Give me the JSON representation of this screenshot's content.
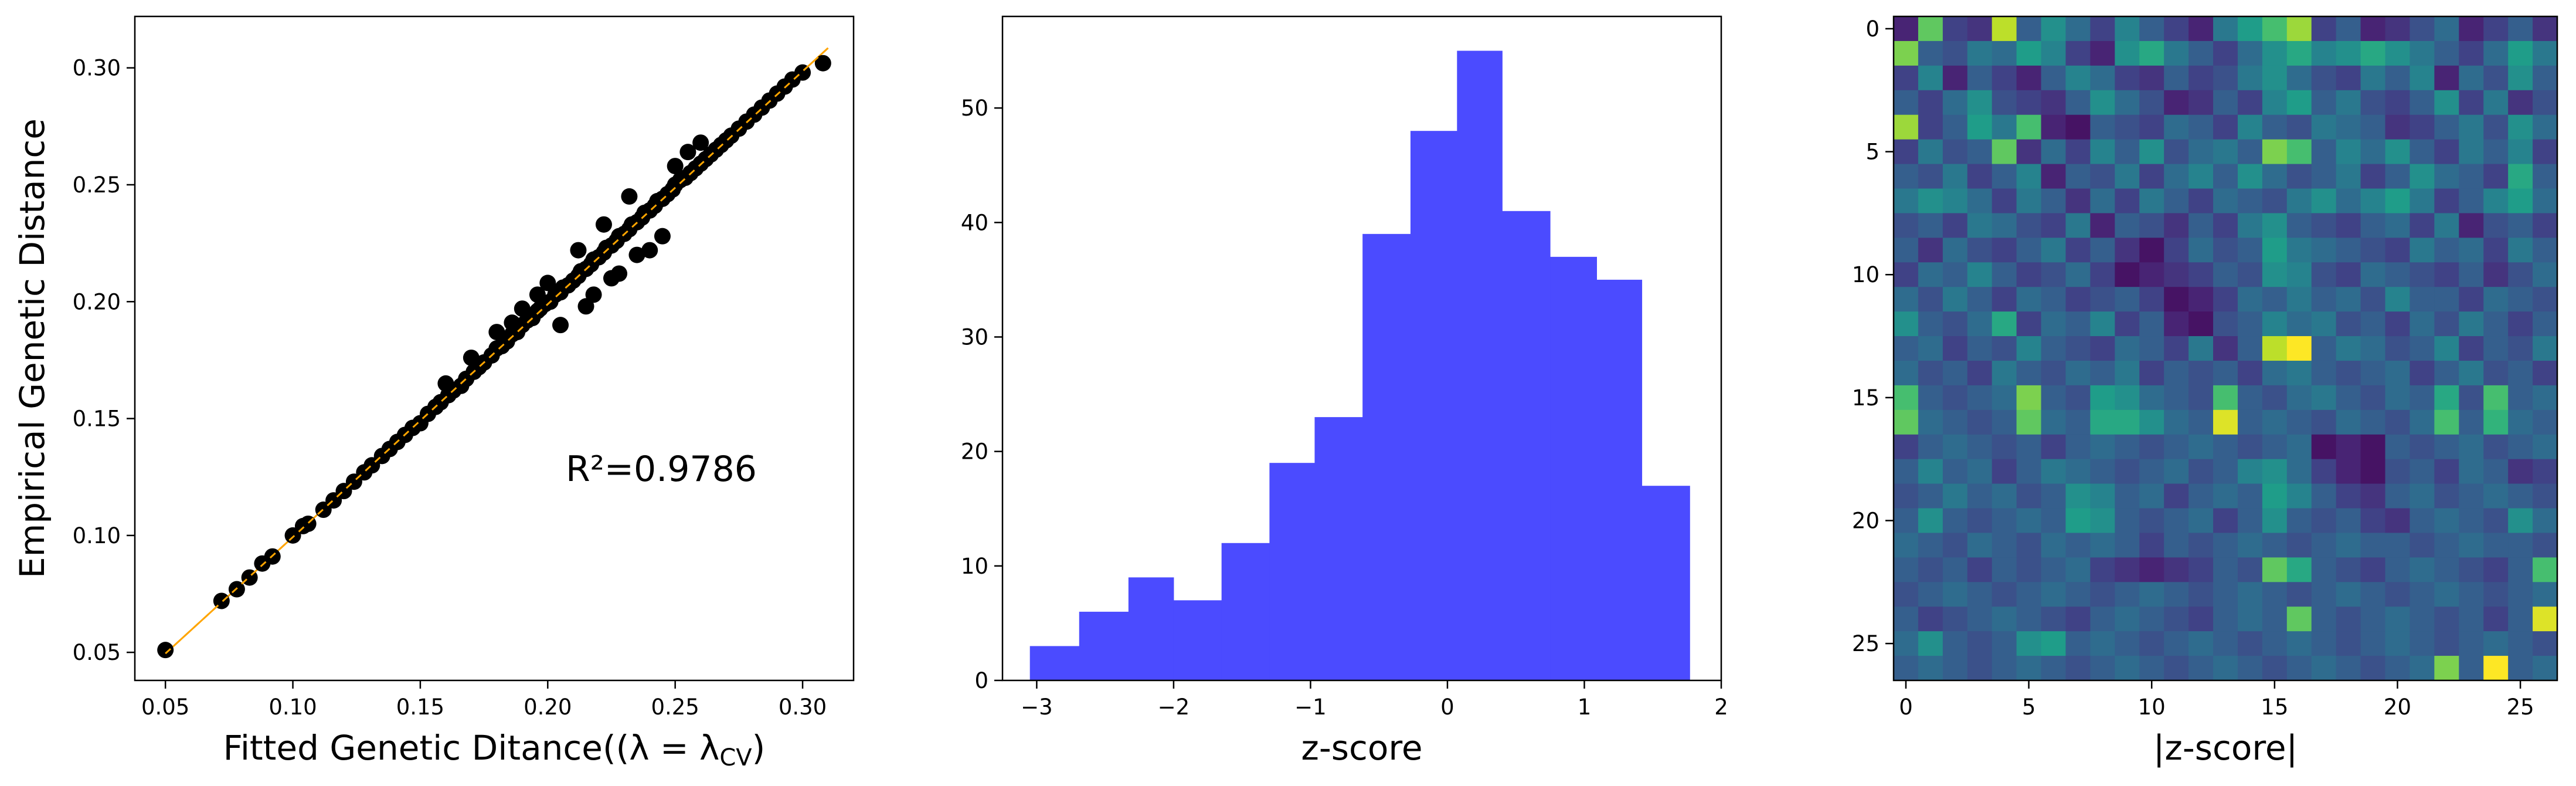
{
  "charts": [
    {
      "type": "scatter",
      "xlabel": "Fitted Genetic Ditance",
      "xlabel_math": "((λ = λ",
      "xlabel_sub": "CV",
      "xlabel_close": ")",
      "ylabel": "Empirical Genetic Distance",
      "annotation": "R²=0.9786",
      "xlim": [
        0.038,
        0.32
      ],
      "ylim": [
        0.038,
        0.322
      ],
      "xticks": [
        0.05,
        0.1,
        0.15,
        0.2,
        0.25,
        0.3
      ],
      "xtick_labels": [
        "0.05",
        "0.10",
        "0.15",
        "0.20",
        "0.25",
        "0.30"
      ],
      "yticks": [
        0.05,
        0.1,
        0.15,
        0.2,
        0.25,
        0.3
      ],
      "ytick_labels": [
        "0.05",
        "0.10",
        "0.15",
        "0.20",
        "0.25",
        "0.30"
      ],
      "marker_color": "#000000",
      "fit_line_color": "#ffa500",
      "fit_line": {
        "x": [
          0.05,
          0.31
        ],
        "y": [
          0.0495,
          0.3085
        ]
      },
      "x": [
        0.05,
        0.072,
        0.078,
        0.083,
        0.088,
        0.092,
        0.1,
        0.104,
        0.106,
        0.112,
        0.116,
        0.12,
        0.124,
        0.128,
        0.131,
        0.135,
        0.138,
        0.141,
        0.144,
        0.147,
        0.15,
        0.153,
        0.156,
        0.158,
        0.161,
        0.163,
        0.166,
        0.168,
        0.171,
        0.173,
        0.175,
        0.178,
        0.18,
        0.182,
        0.184,
        0.186,
        0.188,
        0.19,
        0.192,
        0.194,
        0.196,
        0.197,
        0.199,
        0.201,
        0.203,
        0.205,
        0.206,
        0.208,
        0.21,
        0.212,
        0.213,
        0.215,
        0.217,
        0.218,
        0.22,
        0.222,
        0.223,
        0.225,
        0.227,
        0.228,
        0.23,
        0.232,
        0.233,
        0.235,
        0.237,
        0.238,
        0.24,
        0.242,
        0.243,
        0.245,
        0.247,
        0.249,
        0.25,
        0.252,
        0.254,
        0.256,
        0.258,
        0.26,
        0.262,
        0.264,
        0.266,
        0.268,
        0.27,
        0.272,
        0.275,
        0.278,
        0.281,
        0.284,
        0.287,
        0.29,
        0.293,
        0.296,
        0.3,
        0.308,
        0.205,
        0.215,
        0.225,
        0.235,
        0.245,
        0.24,
        0.228,
        0.218,
        0.2,
        0.19,
        0.18,
        0.17,
        0.16,
        0.25,
        0.255,
        0.26,
        0.232,
        0.222,
        0.212,
        0.196,
        0.186
      ],
      "y": [
        0.051,
        0.072,
        0.077,
        0.082,
        0.088,
        0.091,
        0.1,
        0.104,
        0.105,
        0.111,
        0.115,
        0.119,
        0.123,
        0.127,
        0.13,
        0.134,
        0.137,
        0.14,
        0.143,
        0.146,
        0.148,
        0.152,
        0.155,
        0.157,
        0.16,
        0.162,
        0.164,
        0.167,
        0.17,
        0.172,
        0.174,
        0.177,
        0.18,
        0.181,
        0.183,
        0.186,
        0.187,
        0.19,
        0.192,
        0.193,
        0.196,
        0.197,
        0.199,
        0.2,
        0.203,
        0.204,
        0.206,
        0.207,
        0.209,
        0.211,
        0.213,
        0.214,
        0.216,
        0.218,
        0.219,
        0.221,
        0.223,
        0.224,
        0.226,
        0.228,
        0.229,
        0.231,
        0.233,
        0.234,
        0.236,
        0.238,
        0.239,
        0.241,
        0.243,
        0.244,
        0.246,
        0.248,
        0.25,
        0.252,
        0.253,
        0.255,
        0.257,
        0.259,
        0.261,
        0.263,
        0.265,
        0.267,
        0.269,
        0.271,
        0.274,
        0.277,
        0.28,
        0.283,
        0.286,
        0.289,
        0.292,
        0.295,
        0.298,
        0.302,
        0.19,
        0.198,
        0.21,
        0.22,
        0.228,
        0.222,
        0.212,
        0.203,
        0.208,
        0.197,
        0.187,
        0.176,
        0.165,
        0.258,
        0.264,
        0.268,
        0.245,
        0.233,
        0.222,
        0.203,
        0.191
      ]
    },
    {
      "type": "bar",
      "xlabel": "z-score",
      "xlim": [
        -3.25,
        2.0
      ],
      "ylim": [
        0,
        58
      ],
      "xticks": [
        -3,
        -2,
        -1,
        0,
        1,
        2
      ],
      "xtick_labels": [
        "−3",
        "−2",
        "−1",
        "0",
        "1",
        "2"
      ],
      "yticks": [
        0,
        10,
        20,
        30,
        40,
        50
      ],
      "ytick_labels": [
        "0",
        "10",
        "20",
        "30",
        "40",
        "50"
      ],
      "bar_color": "#4b4bff",
      "bin_edges": [
        -3.05,
        -2.69,
        -2.33,
        -2.0,
        -1.65,
        -1.3,
        -0.97,
        -0.62,
        -0.27,
        0.07,
        0.4,
        0.75,
        1.09,
        1.42,
        1.77
      ],
      "values": [
        3,
        6,
        9,
        7,
        12,
        19,
        23,
        39,
        48,
        55,
        41,
        37,
        35,
        17
      ]
    },
    {
      "type": "heatmap",
      "xlabel": "|z-score|",
      "xticks": [
        0,
        5,
        10,
        15,
        20,
        25
      ],
      "xtick_labels": [
        "0",
        "5",
        "10",
        "15",
        "20",
        "25"
      ],
      "yticks": [
        0,
        5,
        10,
        15,
        20,
        25
      ],
      "ytick_labels": [
        "0",
        "5",
        "10",
        "15",
        "20",
        "25"
      ],
      "grid_size": 27,
      "colormap": [
        "#440154",
        "#482878",
        "#3e4989",
        "#31688e",
        "#26828e",
        "#1f9e89",
        "#35b779",
        "#6ece58",
        "#b5de2b",
        "#fde725"
      ],
      "matrix_note_rows": "values in [0,1] scale of |z-score|",
      "matrix": [
        [
          0.1,
          0.75,
          0.2,
          0.15,
          0.9,
          0.3,
          0.5,
          0.35,
          0.2,
          0.45,
          0.3,
          0.2,
          0.1,
          0.4,
          0.55,
          0.7,
          0.85,
          0.2,
          0.3,
          0.1,
          0.15,
          0.25,
          0.35,
          0.1,
          0.2,
          0.3,
          0.15
        ],
        [
          0.8,
          0.3,
          0.25,
          0.4,
          0.35,
          0.55,
          0.45,
          0.2,
          0.1,
          0.5,
          0.6,
          0.4,
          0.3,
          0.2,
          0.35,
          0.5,
          0.6,
          0.45,
          0.5,
          0.6,
          0.5,
          0.4,
          0.3,
          0.2,
          0.35,
          0.55,
          0.4
        ],
        [
          0.2,
          0.45,
          0.1,
          0.3,
          0.2,
          0.1,
          0.3,
          0.45,
          0.35,
          0.2,
          0.15,
          0.3,
          0.2,
          0.25,
          0.4,
          0.5,
          0.35,
          0.25,
          0.2,
          0.4,
          0.3,
          0.45,
          0.1,
          0.35,
          0.25,
          0.5,
          0.3
        ],
        [
          0.3,
          0.2,
          0.35,
          0.5,
          0.25,
          0.2,
          0.15,
          0.3,
          0.5,
          0.35,
          0.25,
          0.1,
          0.15,
          0.3,
          0.2,
          0.45,
          0.55,
          0.3,
          0.4,
          0.25,
          0.2,
          0.3,
          0.5,
          0.2,
          0.4,
          0.15,
          0.25
        ],
        [
          0.85,
          0.2,
          0.3,
          0.55,
          0.4,
          0.7,
          0.1,
          0.05,
          0.3,
          0.25,
          0.2,
          0.35,
          0.3,
          0.2,
          0.45,
          0.3,
          0.25,
          0.4,
          0.35,
          0.3,
          0.15,
          0.2,
          0.3,
          0.4,
          0.25,
          0.5,
          0.35
        ],
        [
          0.2,
          0.4,
          0.25,
          0.3,
          0.75,
          0.15,
          0.35,
          0.2,
          0.45,
          0.3,
          0.5,
          0.25,
          0.35,
          0.4,
          0.3,
          0.8,
          0.7,
          0.3,
          0.45,
          0.35,
          0.5,
          0.3,
          0.2,
          0.4,
          0.3,
          0.45,
          0.2
        ],
        [
          0.3,
          0.25,
          0.4,
          0.2,
          0.3,
          0.45,
          0.1,
          0.3,
          0.25,
          0.4,
          0.2,
          0.35,
          0.45,
          0.3,
          0.5,
          0.35,
          0.25,
          0.3,
          0.4,
          0.2,
          0.3,
          0.5,
          0.35,
          0.3,
          0.2,
          0.6,
          0.3
        ],
        [
          0.4,
          0.5,
          0.45,
          0.35,
          0.2,
          0.4,
          0.3,
          0.15,
          0.35,
          0.2,
          0.4,
          0.3,
          0.2,
          0.35,
          0.3,
          0.25,
          0.4,
          0.5,
          0.35,
          0.45,
          0.55,
          0.4,
          0.2,
          0.3,
          0.45,
          0.55,
          0.35
        ],
        [
          0.25,
          0.3,
          0.2,
          0.4,
          0.35,
          0.25,
          0.2,
          0.4,
          0.1,
          0.3,
          0.25,
          0.15,
          0.3,
          0.2,
          0.4,
          0.5,
          0.3,
          0.25,
          0.2,
          0.3,
          0.35,
          0.2,
          0.4,
          0.1,
          0.25,
          0.3,
          0.2
        ],
        [
          0.3,
          0.15,
          0.35,
          0.25,
          0.2,
          0.3,
          0.4,
          0.2,
          0.3,
          0.15,
          0.05,
          0.2,
          0.35,
          0.25,
          0.3,
          0.55,
          0.4,
          0.35,
          0.3,
          0.25,
          0.2,
          0.4,
          0.3,
          0.35,
          0.2,
          0.4,
          0.3
        ],
        [
          0.2,
          0.35,
          0.3,
          0.45,
          0.3,
          0.2,
          0.25,
          0.35,
          0.2,
          0.05,
          0.1,
          0.15,
          0.2,
          0.3,
          0.25,
          0.5,
          0.45,
          0.25,
          0.2,
          0.35,
          0.3,
          0.25,
          0.2,
          0.3,
          0.15,
          0.25,
          0.35
        ],
        [
          0.35,
          0.25,
          0.4,
          0.3,
          0.2,
          0.35,
          0.3,
          0.2,
          0.25,
          0.3,
          0.2,
          0.05,
          0.1,
          0.2,
          0.35,
          0.3,
          0.4,
          0.3,
          0.35,
          0.25,
          0.45,
          0.3,
          0.3,
          0.2,
          0.35,
          0.3,
          0.25
        ],
        [
          0.5,
          0.3,
          0.25,
          0.35,
          0.6,
          0.2,
          0.35,
          0.3,
          0.45,
          0.2,
          0.3,
          0.1,
          0.05,
          0.25,
          0.3,
          0.45,
          0.35,
          0.4,
          0.25,
          0.3,
          0.2,
          0.35,
          0.25,
          0.4,
          0.3,
          0.2,
          0.3
        ],
        [
          0.3,
          0.35,
          0.2,
          0.3,
          0.25,
          0.45,
          0.3,
          0.25,
          0.2,
          0.35,
          0.3,
          0.2,
          0.4,
          0.15,
          0.3,
          0.9,
          1.0,
          0.3,
          0.4,
          0.35,
          0.25,
          0.3,
          0.45,
          0.2,
          0.3,
          0.25,
          0.4
        ],
        [
          0.35,
          0.25,
          0.3,
          0.2,
          0.4,
          0.3,
          0.25,
          0.35,
          0.3,
          0.4,
          0.2,
          0.3,
          0.25,
          0.3,
          0.2,
          0.35,
          0.4,
          0.3,
          0.25,
          0.3,
          0.35,
          0.2,
          0.3,
          0.4,
          0.25,
          0.3,
          0.2
        ],
        [
          0.7,
          0.3,
          0.25,
          0.3,
          0.35,
          0.8,
          0.3,
          0.25,
          0.55,
          0.5,
          0.35,
          0.3,
          0.25,
          0.7,
          0.3,
          0.25,
          0.35,
          0.4,
          0.3,
          0.25,
          0.35,
          0.3,
          0.6,
          0.25,
          0.7,
          0.3,
          0.35
        ],
        [
          0.75,
          0.35,
          0.3,
          0.25,
          0.3,
          0.75,
          0.35,
          0.3,
          0.6,
          0.6,
          0.5,
          0.35,
          0.3,
          0.95,
          0.3,
          0.35,
          0.3,
          0.25,
          0.35,
          0.3,
          0.25,
          0.35,
          0.7,
          0.3,
          0.65,
          0.35,
          0.3
        ],
        [
          0.2,
          0.3,
          0.35,
          0.3,
          0.25,
          0.3,
          0.2,
          0.3,
          0.35,
          0.3,
          0.25,
          0.3,
          0.35,
          0.3,
          0.25,
          0.3,
          0.35,
          0.05,
          0.1,
          0.05,
          0.3,
          0.25,
          0.3,
          0.35,
          0.25,
          0.3,
          0.35
        ],
        [
          0.3,
          0.45,
          0.3,
          0.35,
          0.2,
          0.3,
          0.4,
          0.35,
          0.3,
          0.25,
          0.3,
          0.35,
          0.25,
          0.3,
          0.45,
          0.5,
          0.35,
          0.2,
          0.1,
          0.05,
          0.25,
          0.3,
          0.2,
          0.35,
          0.3,
          0.15,
          0.2
        ],
        [
          0.25,
          0.3,
          0.4,
          0.3,
          0.35,
          0.25,
          0.3,
          0.5,
          0.45,
          0.3,
          0.35,
          0.2,
          0.3,
          0.35,
          0.3,
          0.55,
          0.45,
          0.3,
          0.2,
          0.15,
          0.3,
          0.35,
          0.25,
          0.3,
          0.35,
          0.3,
          0.25
        ],
        [
          0.3,
          0.5,
          0.3,
          0.25,
          0.3,
          0.35,
          0.3,
          0.55,
          0.5,
          0.3,
          0.25,
          0.3,
          0.35,
          0.2,
          0.3,
          0.5,
          0.3,
          0.25,
          0.3,
          0.2,
          0.15,
          0.3,
          0.35,
          0.3,
          0.25,
          0.5,
          0.35
        ],
        [
          0.35,
          0.3,
          0.25,
          0.35,
          0.3,
          0.25,
          0.35,
          0.3,
          0.35,
          0.3,
          0.2,
          0.3,
          0.25,
          0.3,
          0.35,
          0.3,
          0.25,
          0.3,
          0.35,
          0.3,
          0.3,
          0.25,
          0.3,
          0.35,
          0.3,
          0.3,
          0.25
        ],
        [
          0.3,
          0.25,
          0.3,
          0.2,
          0.3,
          0.25,
          0.3,
          0.35,
          0.2,
          0.15,
          0.1,
          0.15,
          0.2,
          0.3,
          0.25,
          0.75,
          0.6,
          0.3,
          0.25,
          0.2,
          0.3,
          0.35,
          0.3,
          0.25,
          0.2,
          0.3,
          0.7
        ],
        [
          0.25,
          0.3,
          0.35,
          0.3,
          0.25,
          0.3,
          0.35,
          0.3,
          0.25,
          0.3,
          0.35,
          0.3,
          0.25,
          0.3,
          0.35,
          0.3,
          0.25,
          0.3,
          0.35,
          0.3,
          0.25,
          0.3,
          0.35,
          0.3,
          0.25,
          0.3,
          0.35
        ],
        [
          0.3,
          0.2,
          0.25,
          0.3,
          0.35,
          0.3,
          0.25,
          0.2,
          0.3,
          0.35,
          0.3,
          0.25,
          0.2,
          0.3,
          0.35,
          0.3,
          0.75,
          0.3,
          0.25,
          0.3,
          0.35,
          0.3,
          0.25,
          0.3,
          0.2,
          0.3,
          0.95
        ],
        [
          0.35,
          0.5,
          0.3,
          0.25,
          0.3,
          0.5,
          0.55,
          0.3,
          0.35,
          0.3,
          0.25,
          0.3,
          0.35,
          0.3,
          0.25,
          0.3,
          0.35,
          0.3,
          0.25,
          0.3,
          0.35,
          0.3,
          0.25,
          0.3,
          0.35,
          0.3,
          0.25
        ],
        [
          0.3,
          0.35,
          0.3,
          0.25,
          0.3,
          0.35,
          0.3,
          0.25,
          0.3,
          0.35,
          0.3,
          0.25,
          0.3,
          0.35,
          0.3,
          0.25,
          0.3,
          0.35,
          0.3,
          0.25,
          0.3,
          0.35,
          0.8,
          0.3,
          1.0,
          0.3,
          0.35
        ]
      ]
    }
  ]
}
